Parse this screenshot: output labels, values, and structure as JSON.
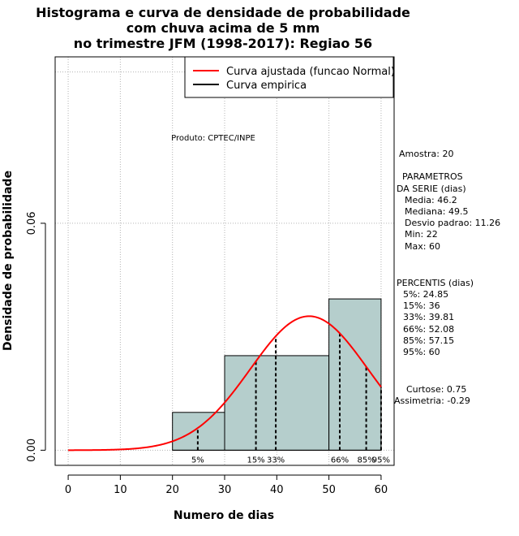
{
  "chart_data": {
    "type": "bar",
    "title_lines": [
      "Histograma e curva de densidade de probabilidade",
      "com chuva acima de 5 mm",
      "no trimestre JFM (1998-2017): Regiao 56"
    ],
    "xlabel": "Numero de dias",
    "ylabel": "Densidade de probabilidade",
    "xlim": [
      -2.5,
      62.5
    ],
    "ylim": [
      -0.004,
      0.104
    ],
    "x_ticks": [
      0,
      10,
      20,
      30,
      40,
      50,
      60
    ],
    "y_ticks": [
      0.0,
      0.06
    ],
    "y_tick_labels": [
      "0.00",
      "0.06"
    ],
    "grid_x": [
      0,
      10,
      20,
      30,
      40,
      50,
      60
    ],
    "grid_y": [
      0.0,
      0.06,
      0.1
    ],
    "bins": [
      {
        "x0": 20,
        "x1": 30,
        "density": 0.01
      },
      {
        "x0": 30,
        "x1": 50,
        "density": 0.025
      },
      {
        "x0": 50,
        "x1": 60,
        "density": 0.04
      }
    ],
    "bar_color": "#b5cecc",
    "normal_curve": {
      "mean": 46.2,
      "sd": 11.26,
      "color": "#ff0000",
      "x_from": 0,
      "x_to": 60
    },
    "percentile_lines": [
      {
        "label": "5%",
        "x": 24.85
      },
      {
        "label": "15%",
        "x": 36
      },
      {
        "label": "33%",
        "x": 39.81
      },
      {
        "label": "66%",
        "x": 52.08
      },
      {
        "label": "85%",
        "x": 57.15
      },
      {
        "label": "95%",
        "x": 60
      }
    ],
    "legend": {
      "position": "top-right",
      "entries": [
        {
          "label": "Curva ajustada (funcao Normal)",
          "color": "#ff0000"
        },
        {
          "label": "Curva empirica",
          "color": "#000000"
        }
      ]
    },
    "product_label": "Produto: CPTEC/INPE"
  },
  "stats_panel": {
    "sample": "Amostra: 20",
    "params_title_1": "PARAMETROS",
    "params_title_2": "DA SERIE (dias)",
    "media": "Media: 46.2",
    "mediana": "Mediana: 49.5",
    "desvio": "Desvio padrao: 11.26",
    "min": "Min: 22",
    "max": "Max: 60",
    "percentis_title": "PERCENTIS (dias)",
    "p5": "5%: 24.85",
    "p15": "15%: 36",
    "p33": "33%: 39.81",
    "p66": "66%: 52.08",
    "p85": "85%: 57.15",
    "p95": "95%: 60",
    "curtose": "Curtose: 0.75",
    "assimetria": "Assimetria: -0.29"
  }
}
